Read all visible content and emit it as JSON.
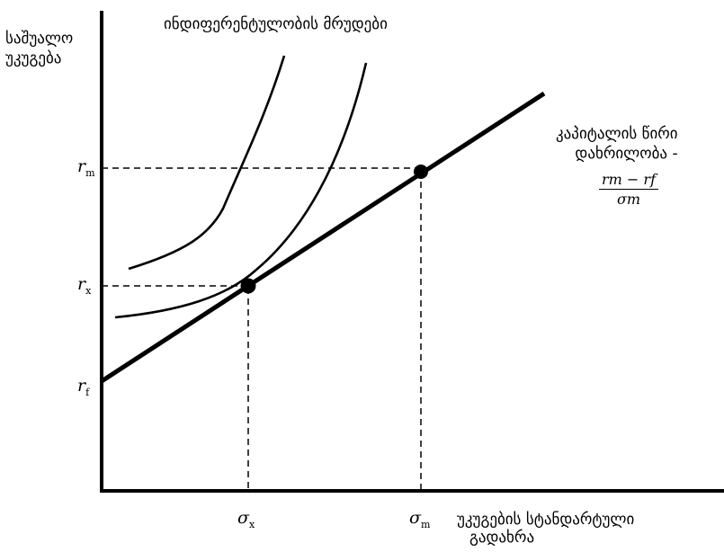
{
  "labels": {
    "y_axis_line1": "საშუალო",
    "y_axis_line2": "უკუგება",
    "curves_title": "ინდიფერენტულობის მრუდები",
    "x_axis_line1": "უკუგების სტანდარტული",
    "x_axis_line2": "გადახრა",
    "slope_line1": "კაპიტალის წირი",
    "slope_line2": "დახრილობა -",
    "slope_numerator": "rm − rf",
    "slope_denominator": "σm"
  },
  "ticks": {
    "r_m": {
      "base": "r",
      "sub": "m"
    },
    "r_x": {
      "base": "r",
      "sub": "x"
    },
    "r_f": {
      "base": "r",
      "sub": "f"
    },
    "sigma_x": {
      "base": "σ",
      "sub": "x"
    },
    "sigma_m": {
      "base": "σ",
      "sub": "m"
    }
  },
  "colors": {
    "ink": "#000000",
    "background": "#ffffff"
  }
}
